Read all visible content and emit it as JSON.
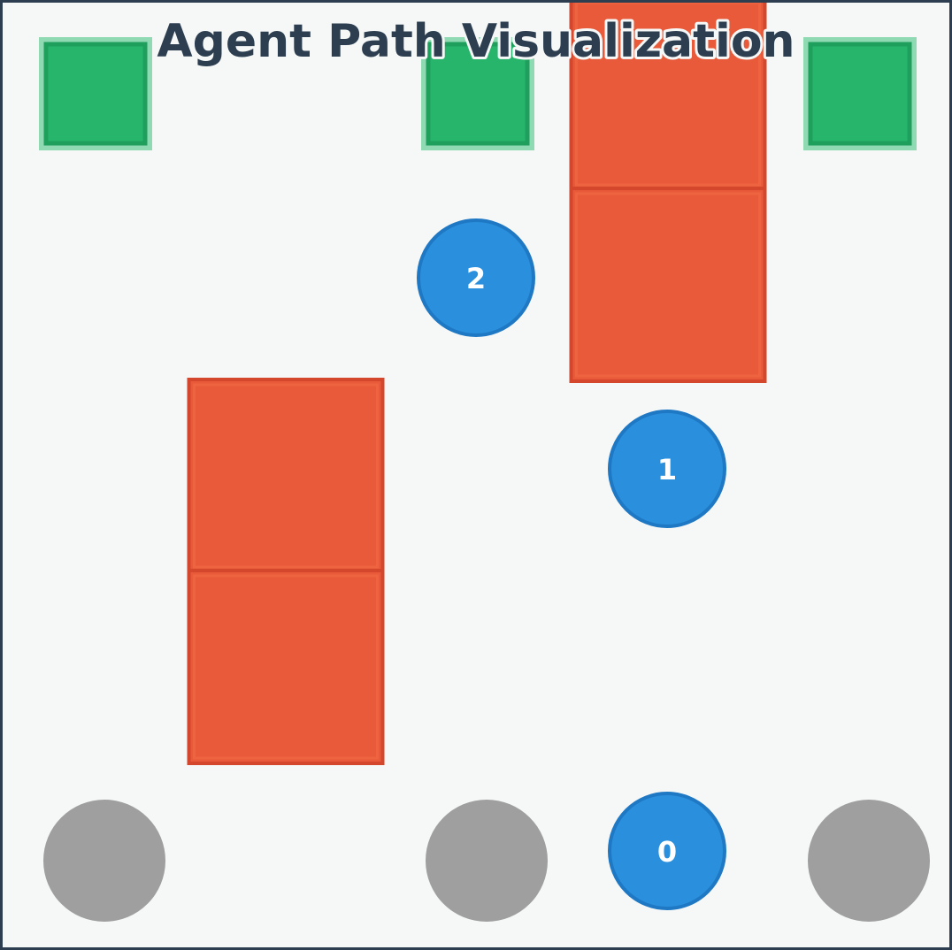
{
  "title": "Agent Path Visualization",
  "grid": {
    "cols": 5,
    "rows": 5
  },
  "colors": {
    "background": "#f6f8f8",
    "frame": "#2c3e50",
    "title": "#2c3e50",
    "goal_fill": "#27b56c",
    "goal_stroke": "#1f9f5c",
    "goal_halo": "#8fd9b3",
    "obstacle_fill": "#e85a3a",
    "obstacle_inner": "#ef6440",
    "obstacle_stroke": "#d4472c",
    "start_fill": "#9e9f9e",
    "agent_fill": "#2a8fdc",
    "agent_stroke": "#1e78c4",
    "agent_label": "#ffffff"
  },
  "goals": [
    {
      "col": 0,
      "row": 0
    },
    {
      "col": 2,
      "row": 0
    },
    {
      "col": 4,
      "row": 0
    }
  ],
  "obstacles": [
    {
      "col": 3,
      "row": 0
    },
    {
      "col": 3,
      "row": 1
    },
    {
      "col": 1,
      "row": 2
    },
    {
      "col": 1,
      "row": 3
    }
  ],
  "starts": [
    {
      "col": 0,
      "row": 4
    },
    {
      "col": 2,
      "row": 4
    },
    {
      "col": 4,
      "row": 4
    }
  ],
  "path": [
    {
      "label": "0",
      "col": 3,
      "row": 4
    },
    {
      "label": "1",
      "col": 3,
      "row": 2
    },
    {
      "label": "2",
      "col": 2,
      "row": 1
    }
  ]
}
